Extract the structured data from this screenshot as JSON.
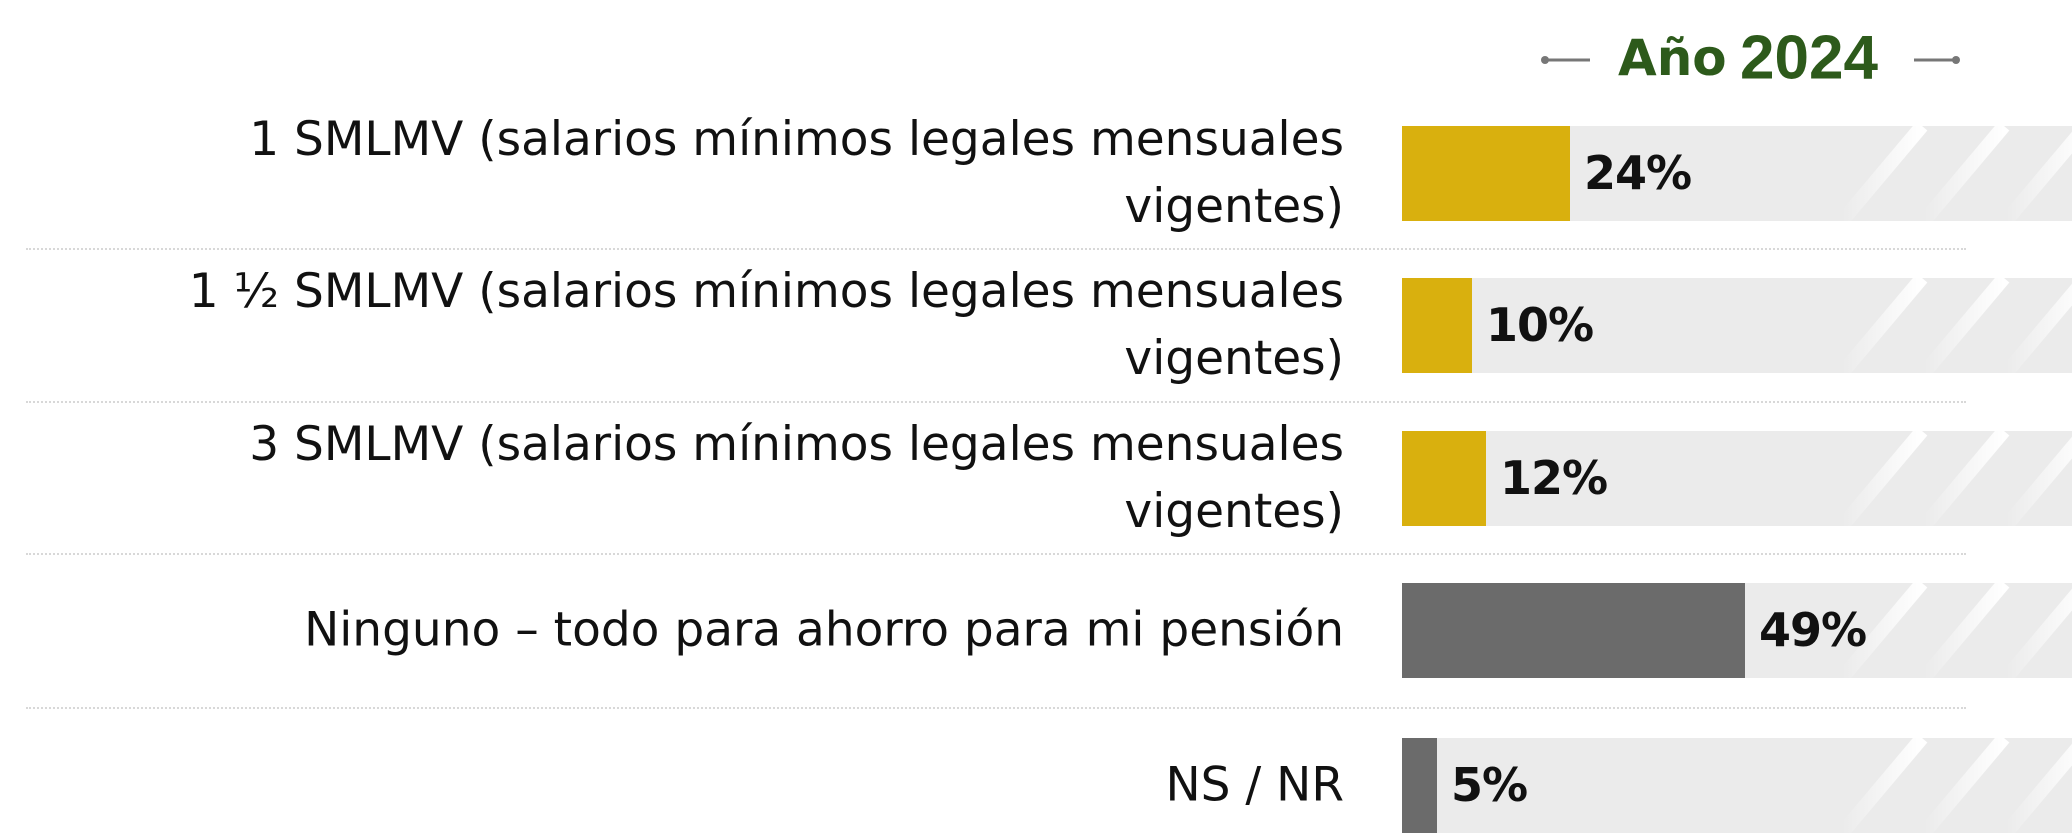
{
  "chart_data": {
    "type": "bar",
    "orientation": "horizontal",
    "title": "Año",
    "subtitle": "2024",
    "categories": [
      "1 SMLMV (salarios mínimos legales mensuales vigentes)",
      "1 ½ SMLMV (salarios mínimos legales mensuales vigentes)",
      "3 SMLMV (salarios mínimos legales mensuales vigentes)",
      "Ninguno – todo para ahorro para mi pensión",
      "NS / NR"
    ],
    "values": [
      24,
      10,
      12,
      49,
      5
    ],
    "value_labels": [
      "24%",
      "10%",
      "12%",
      "49%",
      "5%"
    ],
    "colors": [
      "#d9b00e",
      "#d9b00e",
      "#d9b00e",
      "#6b6b6b",
      "#6b6b6b"
    ],
    "xlim": [
      0,
      100
    ]
  }
}
